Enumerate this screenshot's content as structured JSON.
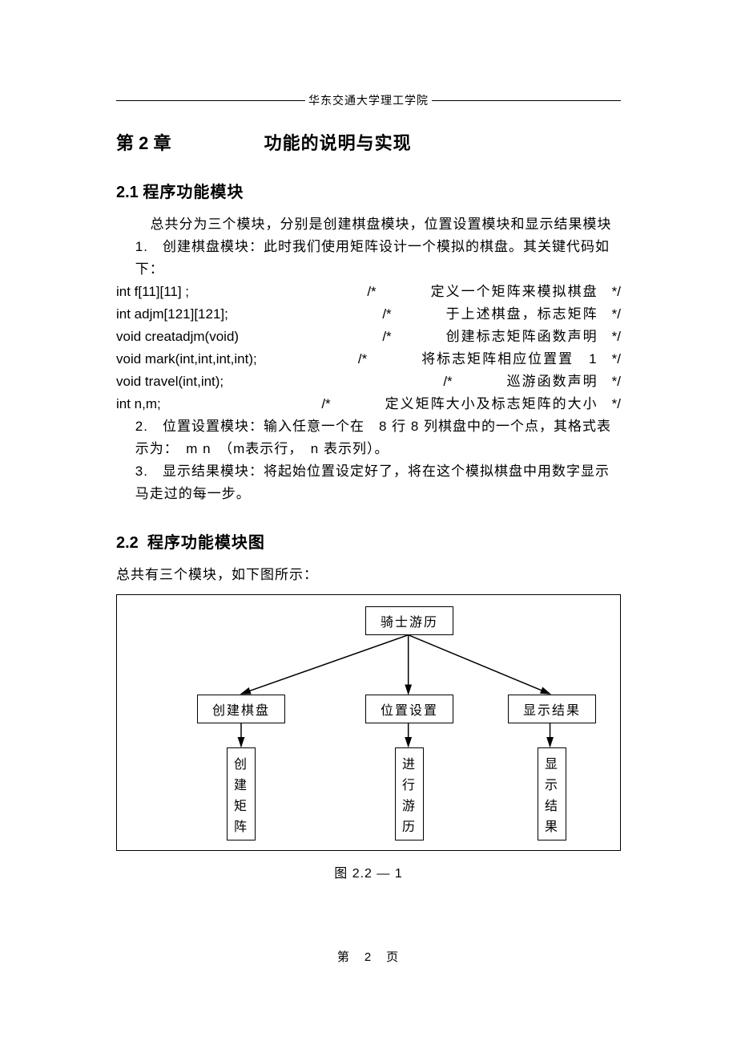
{
  "header": {
    "institution": "华东交通大学理工学院"
  },
  "chapter": {
    "number": "第 2 章",
    "title": "功能的说明与实现"
  },
  "section21": {
    "number": "2.1",
    "title": "程序功能模块",
    "intro": "总共分为三个模块，分别是创建棋盘模块，位置设置模块和显示结果模块",
    "item1_lead": "1.　创建棋盘模块：此时我们使用矩阵设计一个模拟的棋盘。其关键代码如下：",
    "code": [
      {
        "l": "int f[11][11] ;",
        "c": "/*",
        "cn": "定义一个矩阵来模拟棋盘",
        "r": "*/"
      },
      {
        "l": "int adjm[121][121];",
        "c": "/*",
        "cn": "于上述棋盘，标志矩阵",
        "r": "*/"
      },
      {
        "l": "void creatadjm(void)",
        "c": "/*",
        "cn": "创建标志矩阵函数声明",
        "r": "*/"
      },
      {
        "l": "void  mark(int,int,int,int);",
        "c": "/*",
        "cn": "将标志矩阵相应位置置　1",
        "r": "*/"
      },
      {
        "l": "void travel(int,int);",
        "c": "/*",
        "cn": "巡游函数声明",
        "r": "*/"
      },
      {
        "l": "int n,m;",
        "c": "/*",
        "cn": "定义矩阵大小及标志矩阵的大小",
        "r": "*/"
      }
    ],
    "item2": "2.　位置设置模块：输入任意一个在　8 行 8 列棋盘中的一个点，其格式表示为：　m n　（m表示行，　n 表示列）。",
    "item3": "3.　显示结果模块：将起始位置设定好了，将在这个模拟棋盘中用数字显示马走过的每一步。"
  },
  "section22": {
    "number": "2.2",
    "title": "程序功能模块图",
    "intro": "总共有三个模块，如下图所示："
  },
  "diagram": {
    "root": "骑士游历",
    "mid": [
      "创建棋盘",
      "位置设置",
      "显示结果"
    ],
    "leaves": [
      "创建矩阵",
      "进行游历",
      "显示结果"
    ],
    "caption": "图 2.2 — 1",
    "stroke": "#000000",
    "bg": "#ffffff"
  },
  "footer": {
    "pagenum": "第　2　页"
  }
}
